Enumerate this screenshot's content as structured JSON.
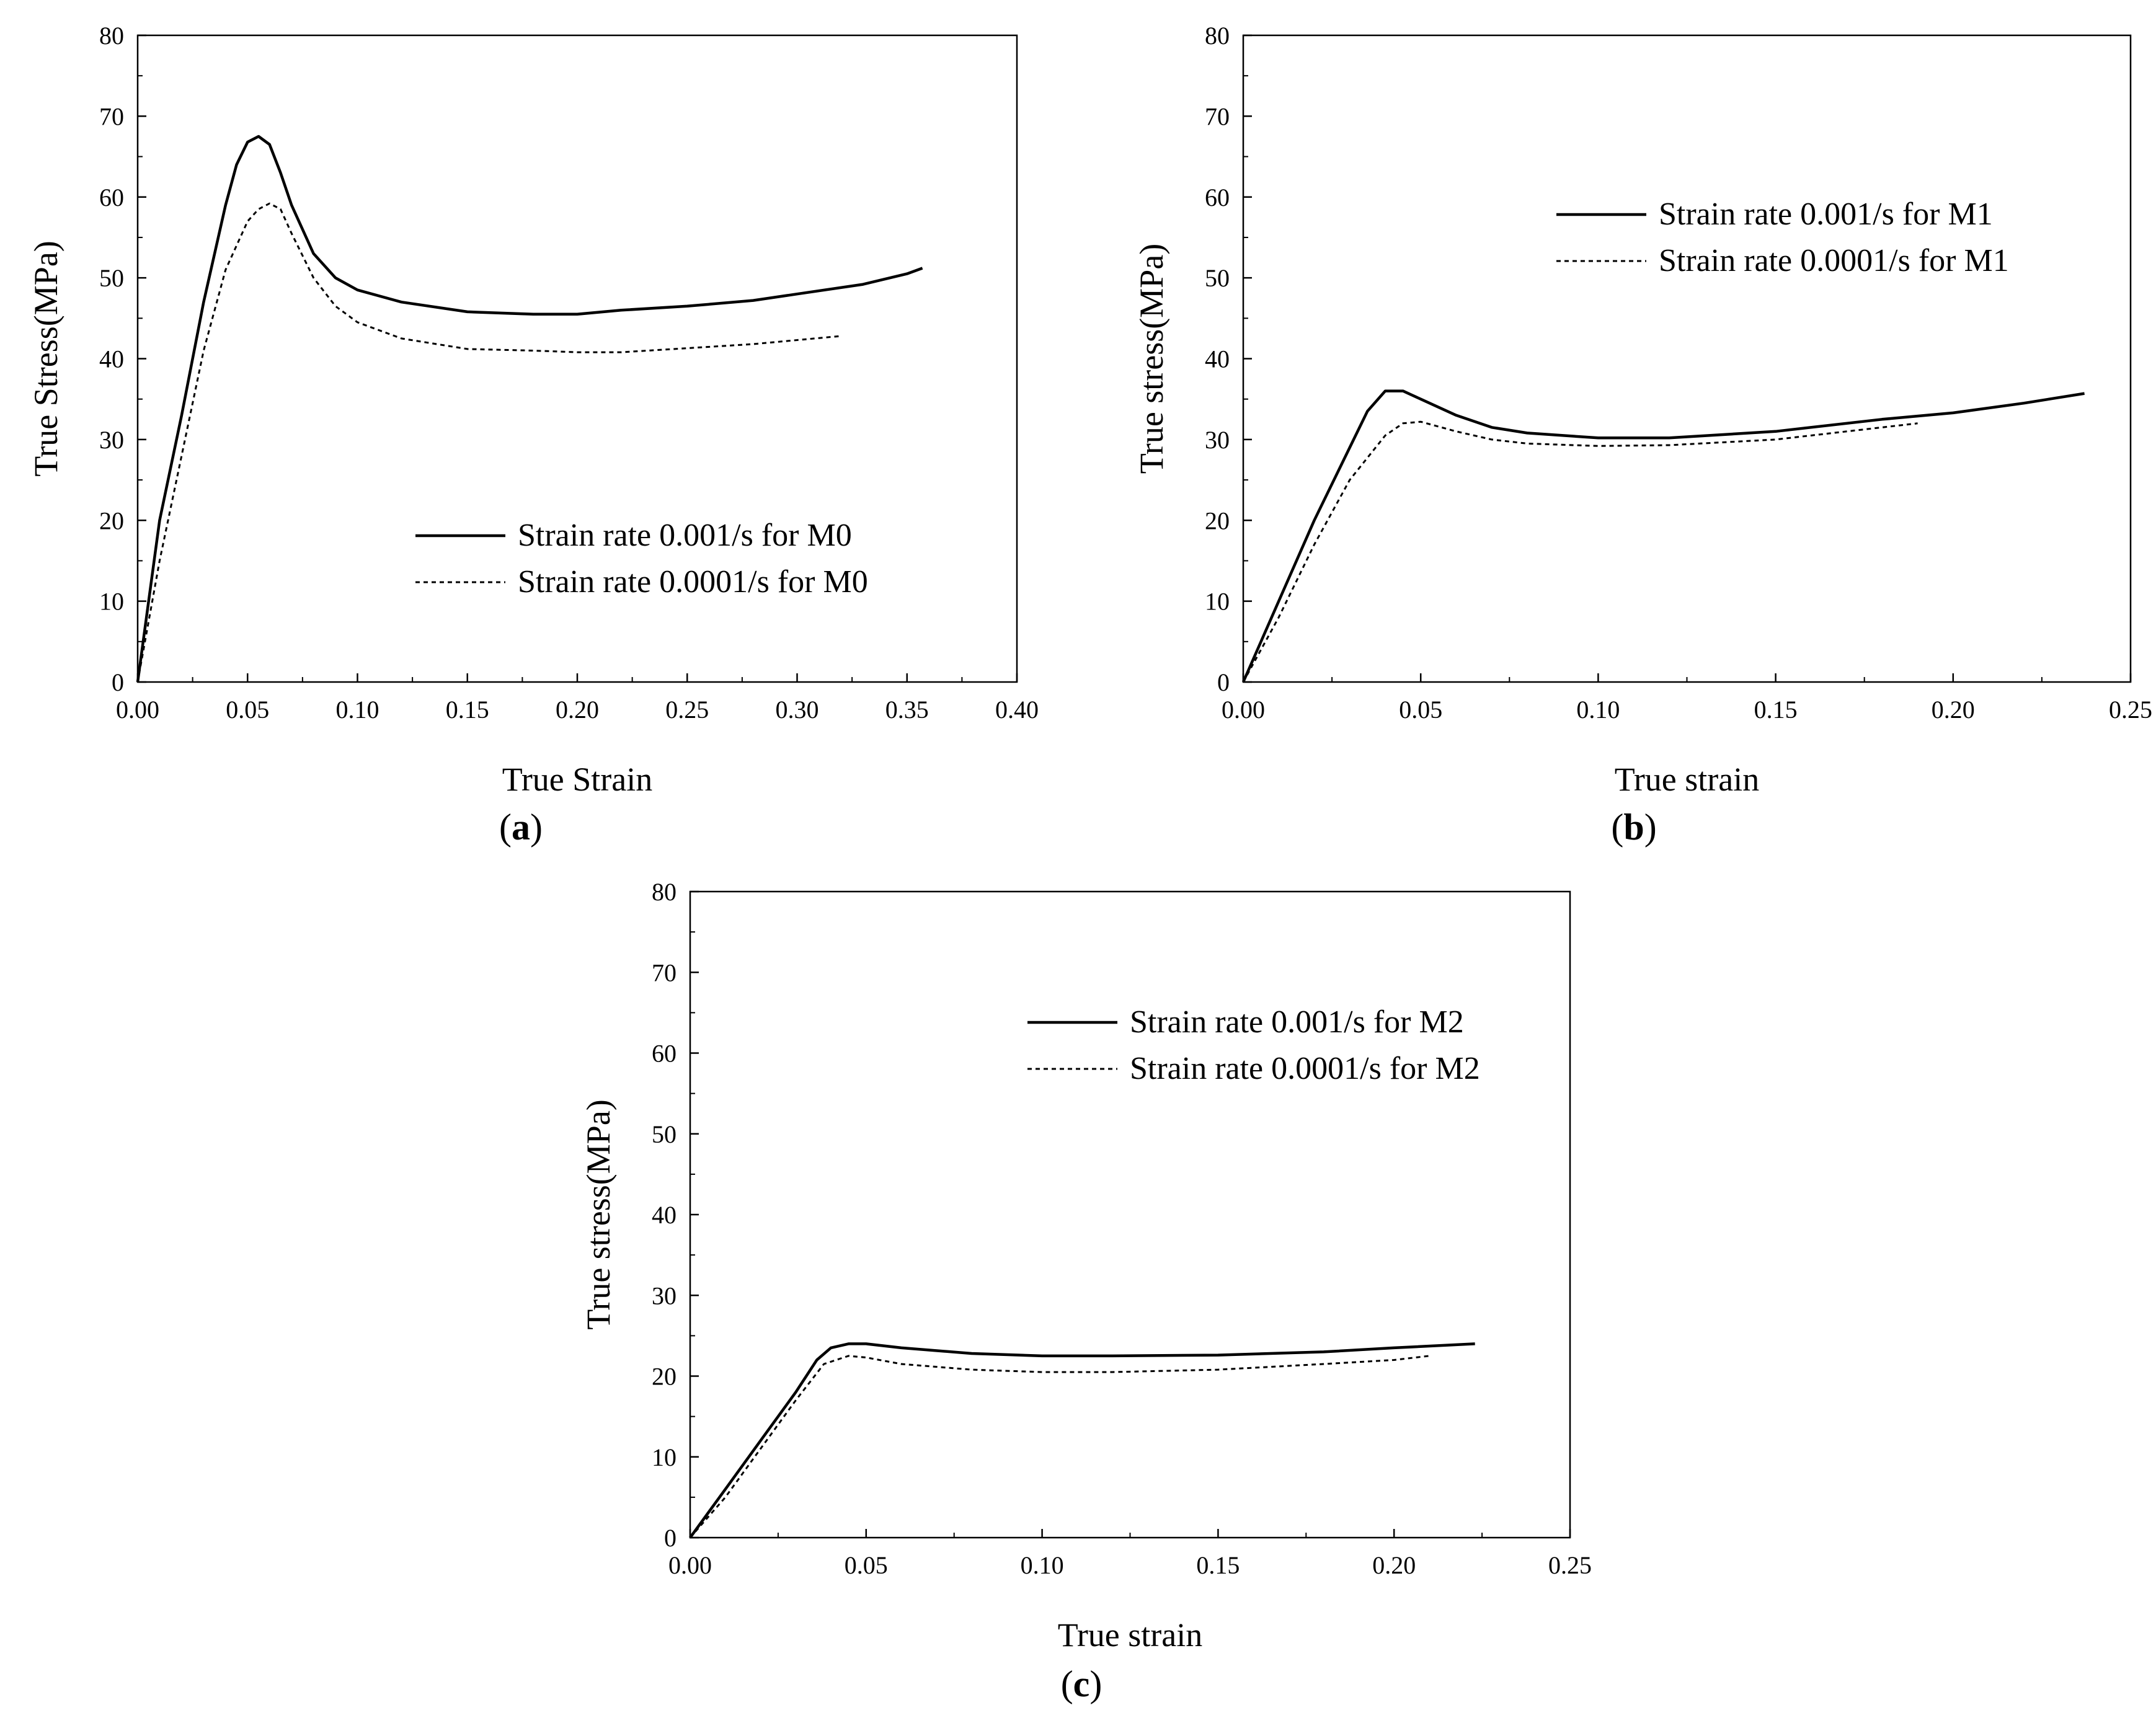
{
  "chart_data": [
    {
      "type": "line",
      "panel_label": "a",
      "xlabel": "True Strain",
      "ylabel": "True Stress(MPa)",
      "xlim": [
        0,
        0.4
      ],
      "ylim": [
        0,
        80
      ],
      "xticks": [
        0.0,
        0.05,
        0.1,
        0.15,
        0.2,
        0.25,
        0.3,
        0.35,
        0.4
      ],
      "xtick_labels": [
        "0.00",
        "0.05",
        "0.10",
        "0.15",
        "0.20",
        "0.25",
        "0.30",
        "0.35",
        "0.40"
      ],
      "yticks": [
        0,
        10,
        20,
        30,
        40,
        50,
        60,
        70,
        80
      ],
      "ytick_labels": [
        "0",
        "10",
        "20",
        "30",
        "40",
        "50",
        "60",
        "70",
        "80"
      ],
      "legend_position": "lower-right",
      "series": [
        {
          "name": "Strain rate 0.001/s for M0",
          "style": "solid",
          "x": [
            0.0,
            0.01,
            0.02,
            0.03,
            0.04,
            0.045,
            0.05,
            0.055,
            0.06,
            0.065,
            0.07,
            0.08,
            0.09,
            0.1,
            0.12,
            0.15,
            0.18,
            0.2,
            0.22,
            0.25,
            0.28,
            0.3,
            0.33,
            0.35,
            0.357
          ],
          "y": [
            0,
            20,
            33,
            47,
            59,
            64,
            66.8,
            67.5,
            66.5,
            63,
            59,
            53,
            50,
            48.5,
            47,
            45.8,
            45.5,
            45.5,
            46,
            46.5,
            47.2,
            48,
            49.2,
            50.5,
            51.2
          ]
        },
        {
          "name": "Strain rate 0.0001/s for M0",
          "style": "dotted",
          "x": [
            0.0,
            0.01,
            0.02,
            0.03,
            0.04,
            0.05,
            0.055,
            0.06,
            0.065,
            0.07,
            0.08,
            0.09,
            0.1,
            0.12,
            0.15,
            0.18,
            0.2,
            0.22,
            0.25,
            0.28,
            0.3,
            0.32
          ],
          "y": [
            0,
            15,
            28,
            41,
            51,
            57,
            58.5,
            59.2,
            58.5,
            55.5,
            50,
            46.5,
            44.5,
            42.5,
            41.2,
            41,
            40.8,
            40.8,
            41.3,
            41.8,
            42.3,
            42.8
          ]
        }
      ]
    },
    {
      "type": "line",
      "panel_label": "b",
      "xlabel": "True strain",
      "ylabel": "True stress(MPa)",
      "xlim": [
        0,
        0.25
      ],
      "ylim": [
        0,
        80
      ],
      "xticks": [
        0.0,
        0.05,
        0.1,
        0.15,
        0.2,
        0.25
      ],
      "xtick_labels": [
        "0.00",
        "0.05",
        "0.10",
        "0.15",
        "0.20",
        "0.25"
      ],
      "yticks": [
        0,
        10,
        20,
        30,
        40,
        50,
        60,
        70,
        80
      ],
      "ytick_labels": [
        "0",
        "10",
        "20",
        "30",
        "40",
        "50",
        "60",
        "70",
        "80"
      ],
      "legend_position": "upper-right",
      "series": [
        {
          "name": "Strain rate 0.001/s for M1",
          "style": "solid",
          "x": [
            0.0,
            0.01,
            0.02,
            0.03,
            0.035,
            0.04,
            0.045,
            0.05,
            0.06,
            0.07,
            0.08,
            0.1,
            0.12,
            0.15,
            0.18,
            0.2,
            0.22,
            0.237
          ],
          "y": [
            0,
            10,
            20,
            29,
            33.5,
            36,
            36,
            35,
            33,
            31.5,
            30.8,
            30.2,
            30.2,
            31,
            32.5,
            33.3,
            34.5,
            35.7
          ]
        },
        {
          "name": "Strain rate 0.0001/s for M1",
          "style": "dotted",
          "x": [
            0.0,
            0.01,
            0.02,
            0.03,
            0.04,
            0.045,
            0.05,
            0.06,
            0.07,
            0.08,
            0.1,
            0.12,
            0.15,
            0.18,
            0.19
          ],
          "y": [
            0,
            8,
            17,
            25,
            30.5,
            32,
            32.2,
            31,
            30,
            29.5,
            29.2,
            29.3,
            30,
            31.5,
            32
          ]
        }
      ]
    },
    {
      "type": "line",
      "panel_label": "c",
      "xlabel": "True strain",
      "ylabel": "True stress(MPa)",
      "xlim": [
        0,
        0.25
      ],
      "ylim": [
        0,
        80
      ],
      "xticks": [
        0.0,
        0.05,
        0.1,
        0.15,
        0.2,
        0.25
      ],
      "xtick_labels": [
        "0.00",
        "0.05",
        "0.10",
        "0.15",
        "0.20",
        "0.25"
      ],
      "yticks": [
        0,
        10,
        20,
        30,
        40,
        50,
        60,
        70,
        80
      ],
      "ytick_labels": [
        "0",
        "10",
        "20",
        "30",
        "40",
        "50",
        "60",
        "70",
        "80"
      ],
      "legend_position": "upper-right",
      "series": [
        {
          "name": "Strain rate 0.001/s for M2",
          "style": "solid",
          "x": [
            0.0,
            0.01,
            0.02,
            0.03,
            0.036,
            0.04,
            0.045,
            0.05,
            0.06,
            0.08,
            0.1,
            0.12,
            0.15,
            0.18,
            0.2,
            0.223
          ],
          "y": [
            0,
            6,
            12,
            18,
            22,
            23.5,
            24,
            24,
            23.5,
            22.8,
            22.5,
            22.5,
            22.6,
            23,
            23.5,
            24
          ]
        },
        {
          "name": "Strain rate 0.0001/s for M2",
          "style": "dotted",
          "x": [
            0.0,
            0.01,
            0.02,
            0.03,
            0.038,
            0.045,
            0.05,
            0.06,
            0.08,
            0.1,
            0.12,
            0.15,
            0.18,
            0.2,
            0.21
          ],
          "y": [
            0,
            5,
            11,
            17,
            21.5,
            22.5,
            22.3,
            21.5,
            20.8,
            20.5,
            20.5,
            20.8,
            21.5,
            22,
            22.5
          ]
        }
      ]
    }
  ]
}
